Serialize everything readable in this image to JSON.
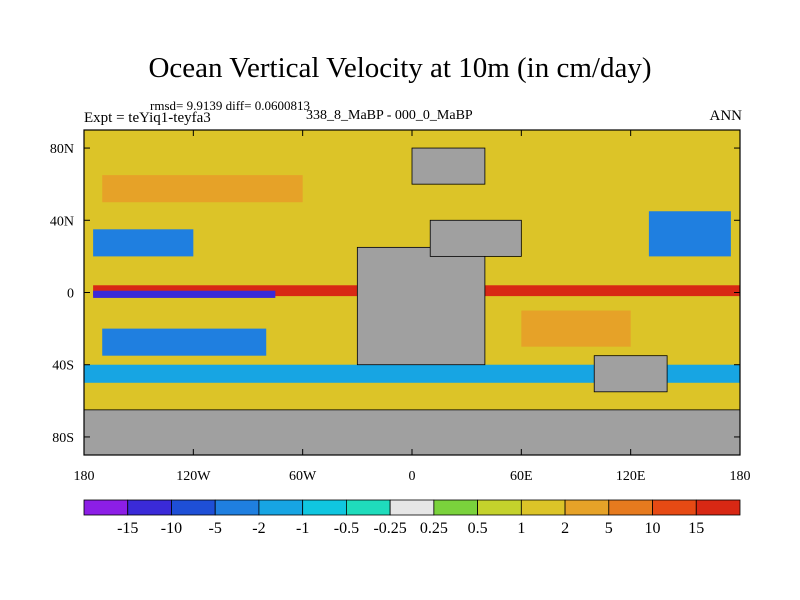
{
  "chart_data": {
    "type": "heatmap",
    "title": "Ocean Vertical Velocity at 10m (in cm/day)",
    "stats": "rmsd= 9.9139 diff= 0.0600813",
    "left_label": "Expt = teYiq1-teyfa3",
    "center_label": "338_8_MaBP - 000_0_MaBP",
    "right_label": "ANN",
    "x_axis": {
      "range": [
        -180,
        180
      ],
      "tick_values": [
        -180,
        -120,
        -60,
        0,
        60,
        120,
        180
      ],
      "tick_labels": [
        "180",
        "120W",
        "60W",
        "0",
        "60E",
        "120E",
        "180"
      ]
    },
    "y_axis": {
      "range": [
        -90,
        90
      ],
      "tick_values": [
        80,
        40,
        0,
        -40,
        -80
      ],
      "tick_labels": [
        "80N",
        "40N",
        "0",
        "40S",
        "80S"
      ]
    },
    "colorbar": {
      "boundary_labels": [
        "-15",
        "-10",
        "-5",
        "-2",
        "-1",
        "-0.5",
        "-0.25",
        "0.25",
        "0.5",
        "1",
        "2",
        "5",
        "10",
        "15"
      ],
      "colors": [
        "#8c1ee6",
        "#3a2ad8",
        "#1e4fd6",
        "#1f7fe0",
        "#17a5e3",
        "#10c6e0",
        "#1fdcbc",
        "#e6e6e6",
        "#7ad23c",
        "#c4d22c",
        "#dcc428",
        "#e6a228",
        "#e67a1e",
        "#e64a14",
        "#d82814"
      ]
    },
    "field_regions": [
      {
        "name": "equatorial-upwelling-band",
        "lon": [
          -175,
          180
        ],
        "lat": [
          -2,
          4
        ],
        "level": 14
      },
      {
        "name": "equatorial-downwelling-band",
        "lon": [
          -175,
          -75
        ],
        "lat": [
          -3,
          1
        ],
        "level": 1
      },
      {
        "name": "north-subtropical-downwelling",
        "lon": [
          -175,
          -120
        ],
        "lat": [
          20,
          35
        ],
        "level": 3
      },
      {
        "name": "south-subtropical-downwelling",
        "lon": [
          -170,
          -80
        ],
        "lat": [
          -35,
          -20
        ],
        "level": 3
      },
      {
        "name": "subpolar-upwelling-north",
        "lon": [
          -170,
          -60
        ],
        "lat": [
          50,
          65
        ],
        "level": 11
      },
      {
        "name": "southern-ocean-upwelling",
        "lon": [
          -180,
          180
        ],
        "lat": [
          -65,
          -55
        ],
        "level": 10
      },
      {
        "name": "southern-ocean-downwelling",
        "lon": [
          -180,
          180
        ],
        "lat": [
          -50,
          -40
        ],
        "level": 4
      },
      {
        "name": "indian-ocean-upwelling",
        "lon": [
          60,
          120
        ],
        "lat": [
          -30,
          -10
        ],
        "level": 11
      },
      {
        "name": "pacific-west-downwelling",
        "lon": [
          130,
          175
        ],
        "lat": [
          20,
          45
        ],
        "level": 3
      }
    ],
    "land_color": "#a0a0a0",
    "land_masses": [
      {
        "name": "south-america-africa-continent",
        "lon": [
          -30,
          40
        ],
        "lat": [
          -40,
          25
        ]
      },
      {
        "name": "antarctica",
        "lon": [
          -180,
          180
        ],
        "lat": [
          -90,
          -65
        ]
      },
      {
        "name": "northern-landmass",
        "lon": [
          10,
          60
        ],
        "lat": [
          20,
          40
        ]
      },
      {
        "name": "australia-asia-landmass",
        "lon": [
          100,
          140
        ],
        "lat": [
          -55,
          -35
        ]
      },
      {
        "name": "arctic-landmass",
        "lon": [
          0,
          40
        ],
        "lat": [
          60,
          80
        ]
      }
    ]
  }
}
